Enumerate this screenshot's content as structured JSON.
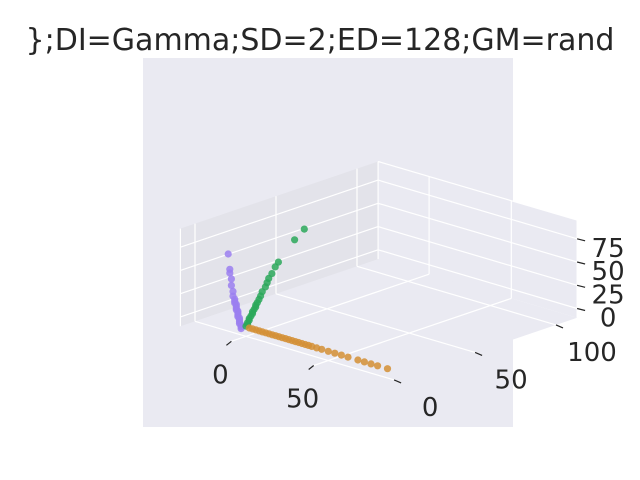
{
  "chart_data": {
    "type": "scatter",
    "title": "};DI=Gamma;SD=2;ED=128;GM=rand",
    "xlabel": "",
    "ylabel": "",
    "zlabel": "",
    "grid": true,
    "x_ticks": [
      "0",
      "50"
    ],
    "y_ticks": [
      "0",
      "50",
      "100"
    ],
    "z_ticks": [
      "0",
      "25",
      "50",
      "75"
    ],
    "colors": {
      "pane": "#eaeaf2",
      "side_pane": "#e3e3ea",
      "grid": "#ffffff",
      "text": "#262626"
    },
    "series": [
      {
        "color": "#9b7ff0",
        "points": [
          [
            0,
            -3,
            0
          ],
          [
            0,
            -3,
            2
          ],
          [
            0,
            -3,
            4
          ],
          [
            0,
            -4,
            6
          ],
          [
            0,
            -4,
            8
          ],
          [
            0,
            -4,
            10
          ],
          [
            0,
            -4,
            12
          ],
          [
            0,
            -5,
            14
          ],
          [
            0,
            -5,
            16
          ],
          [
            0,
            -5,
            18
          ],
          [
            0,
            -5,
            20
          ],
          [
            0,
            -6,
            22
          ],
          [
            0,
            -6,
            24
          ],
          [
            0,
            -6,
            26
          ],
          [
            0,
            -6,
            28
          ],
          [
            0,
            -7,
            30
          ],
          [
            0,
            -7,
            32
          ],
          [
            0,
            -7,
            34
          ],
          [
            0,
            -8,
            38
          ],
          [
            0,
            -8,
            43
          ],
          [
            0,
            -9,
            50
          ],
          [
            0,
            -9,
            57
          ],
          [
            0,
            -10,
            64
          ],
          [
            0,
            -10,
            68
          ],
          [
            0,
            -11,
            85
          ]
        ]
      },
      {
        "color": "#2ca85a",
        "points": [
          [
            0,
            0,
            1
          ],
          [
            0,
            1,
            2
          ],
          [
            0,
            1,
            4
          ],
          [
            0,
            2,
            6
          ],
          [
            0,
            2,
            8
          ],
          [
            0,
            3,
            10
          ],
          [
            0,
            4,
            12
          ],
          [
            0,
            4,
            14
          ],
          [
            0,
            5,
            16
          ],
          [
            0,
            6,
            18
          ],
          [
            0,
            6,
            20
          ],
          [
            0,
            7,
            22
          ],
          [
            0,
            8,
            25
          ],
          [
            0,
            9,
            28
          ],
          [
            0,
            10,
            32
          ],
          [
            0,
            12,
            36
          ],
          [
            0,
            13,
            40
          ],
          [
            0,
            14,
            44
          ],
          [
            0,
            16,
            48
          ],
          [
            0,
            18,
            54
          ],
          [
            0,
            20,
            58
          ],
          [
            0,
            30,
            76
          ],
          [
            0,
            36,
            84
          ]
        ]
      },
      {
        "color": "#d48f35",
        "points": [
          [
            2,
            0,
            0
          ],
          [
            4,
            0,
            0
          ],
          [
            6,
            0,
            0
          ],
          [
            8,
            0,
            0
          ],
          [
            10,
            0,
            0
          ],
          [
            12,
            0,
            0
          ],
          [
            14,
            0,
            0
          ],
          [
            16,
            0,
            0
          ],
          [
            18,
            0,
            0
          ],
          [
            20,
            0,
            0
          ],
          [
            22,
            0,
            0
          ],
          [
            24,
            0,
            0
          ],
          [
            26,
            0,
            0
          ],
          [
            28,
            0,
            0
          ],
          [
            30,
            0,
            0
          ],
          [
            32,
            0,
            0
          ],
          [
            34,
            0,
            0
          ],
          [
            36,
            0,
            0
          ],
          [
            38,
            0,
            0
          ],
          [
            40,
            0,
            0
          ],
          [
            43,
            0,
            0
          ],
          [
            46,
            0,
            0
          ],
          [
            50,
            0,
            0
          ],
          [
            54,
            0,
            0
          ],
          [
            58,
            0,
            0
          ],
          [
            62,
            0,
            0
          ],
          [
            68,
            0,
            0
          ],
          [
            72,
            0,
            0
          ],
          [
            76,
            0,
            0
          ],
          [
            80,
            0,
            0
          ],
          [
            86,
            0,
            0
          ]
        ]
      }
    ]
  }
}
